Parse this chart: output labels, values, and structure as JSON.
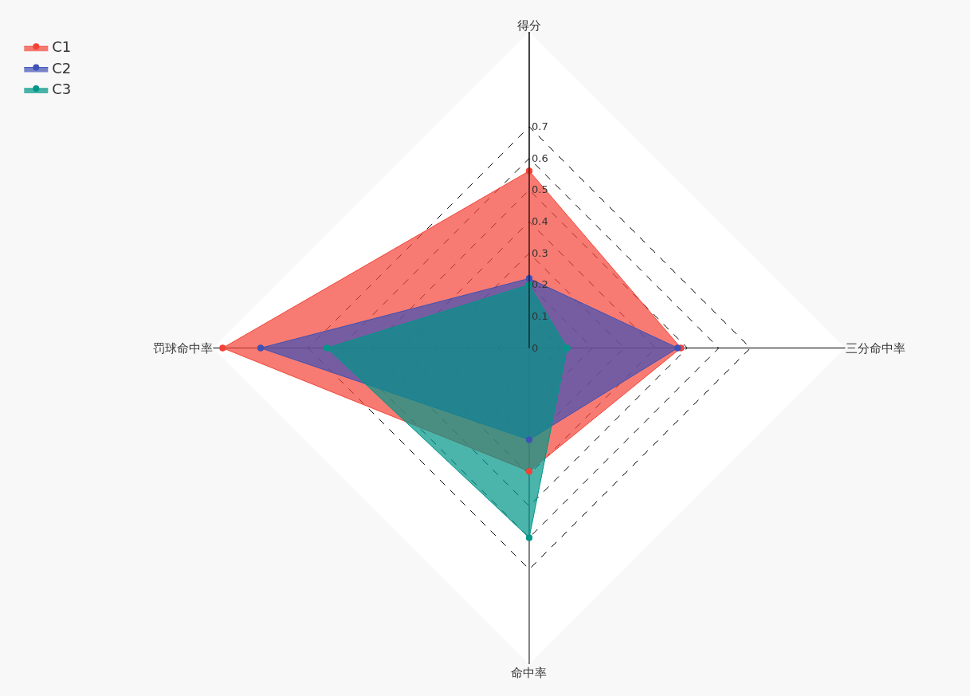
{
  "chart_data": {
    "type": "radar",
    "categories": [
      "得分",
      "三分命中率",
      "命中率",
      "罚球命中率"
    ],
    "series": [
      {
        "name": "C1",
        "color": "#f44336",
        "values": [
          0.56,
          0.48,
          0.39,
          0.97
        ]
      },
      {
        "name": "C2",
        "color": "#3f51b5",
        "values": [
          0.22,
          0.47,
          0.29,
          0.85
        ]
      },
      {
        "name": "C3",
        "color": "#009688",
        "values": [
          0.2,
          0.12,
          0.6,
          0.64
        ]
      }
    ],
    "ylim": [
      0,
      1.0
    ],
    "yticks": [
      0,
      0.1,
      0.2,
      0.3,
      0.4,
      0.5,
      0.6,
      0.7
    ],
    "grid": true,
    "legend": "top left",
    "marker": "circle"
  }
}
